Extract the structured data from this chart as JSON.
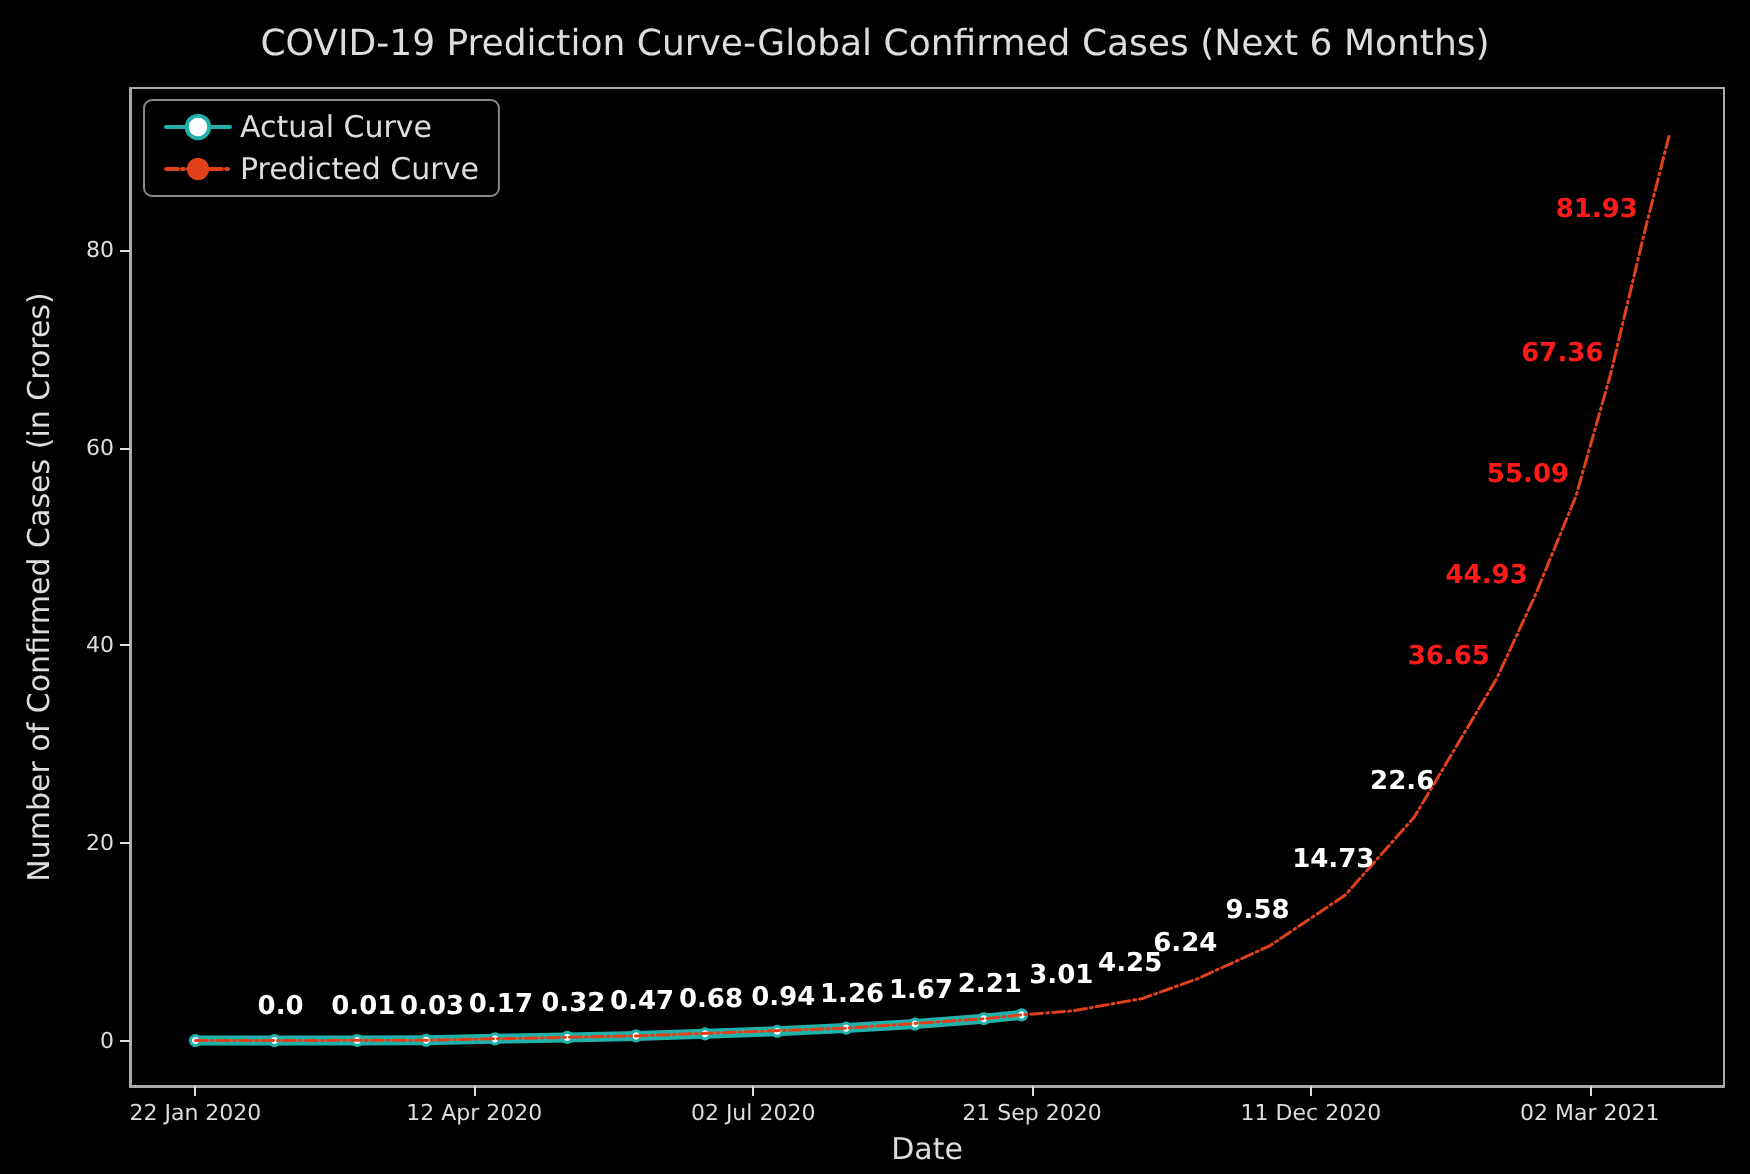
{
  "chart_data": {
    "type": "line",
    "title": "COVID-19 Prediction Curve-Global Confirmed Cases (Next 6 Months)",
    "xlabel": "Date",
    "ylabel": "Number of Confirmed Cases (in Crores)",
    "series": [
      {
        "name": "Actual Curve",
        "color": "#20b2aa",
        "marker": "circle",
        "line_style": "solid",
        "x": [
          "2020-01-22",
          "2020-02-14",
          "2020-03-09",
          "2020-03-29",
          "2020-04-18",
          "2020-05-09",
          "2020-05-29",
          "2020-06-18",
          "2020-07-09",
          "2020-07-29",
          "2020-08-18",
          "2020-09-07",
          "2020-09-18"
        ],
        "values": [
          0,
          0.0,
          0.01,
          0.03,
          0.17,
          0.32,
          0.47,
          0.68,
          0.94,
          1.26,
          1.67,
          2.21,
          2.6
        ],
        "value_labels": [
          null,
          "0.0",
          "0.01",
          "0.03",
          "0.17",
          "0.32",
          "0.47",
          "0.68",
          "0.94",
          "1.26",
          "1.67",
          "2.21",
          null
        ]
      },
      {
        "name": "Predicted Curve",
        "color": "#e0401a",
        "marker": "none",
        "line_style": "dashed",
        "x": [
          "2020-01-22",
          "2020-03-29",
          "2020-05-29",
          "2020-07-29",
          "2020-09-07",
          "2020-09-18",
          "2020-10-03",
          "2020-10-23",
          "2020-11-08",
          "2020-11-29",
          "2020-12-21",
          "2021-01-10",
          "2021-02-03",
          "2021-02-14",
          "2021-02-26",
          "2021-03-08",
          "2021-03-18",
          "2021-03-25"
        ],
        "values": [
          0,
          0.03,
          0.47,
          1.26,
          2.21,
          2.6,
          3.01,
          4.25,
          6.24,
          9.58,
          14.73,
          22.6,
          36.65,
          44.93,
          55.09,
          67.36,
          81.93,
          91.5
        ],
        "value_labels": [
          null,
          null,
          null,
          null,
          null,
          null,
          "3.01",
          "4.25",
          "6.24",
          "9.58",
          "14.73",
          "22.6",
          null,
          null,
          null,
          null,
          null,
          null
        ]
      }
    ],
    "annotations": [
      {
        "text": "36.65",
        "x": "2021-02-03",
        "y": 36.65
      },
      {
        "text": "44.93",
        "x": "2021-02-14",
        "y": 44.93
      },
      {
        "text": "55.09",
        "x": "2021-02-26",
        "y": 55.09
      },
      {
        "text": "67.36",
        "x": "2021-03-08",
        "y": 67.36
      },
      {
        "text": "81.93",
        "x": "2021-03-18",
        "y": 81.93
      }
    ],
    "xlim": [
      "2020-01-03",
      "2021-04-10"
    ],
    "xticks": [
      {
        "value": "2020-01-22",
        "label": "22 Jan 2020"
      },
      {
        "value": "2020-04-12",
        "label": "12 Apr 2020"
      },
      {
        "value": "2020-07-02",
        "label": "02 Jul 2020"
      },
      {
        "value": "2020-09-21",
        "label": "21 Sep 2020"
      },
      {
        "value": "2020-12-11",
        "label": "11 Dec 2020"
      },
      {
        "value": "2021-03-02",
        "label": "02 Mar 2021"
      }
    ],
    "ylim": [
      -4.6,
      96.4
    ],
    "yticks": [
      0,
      20,
      40,
      60,
      80
    ],
    "grid": false,
    "legend": "top left"
  }
}
